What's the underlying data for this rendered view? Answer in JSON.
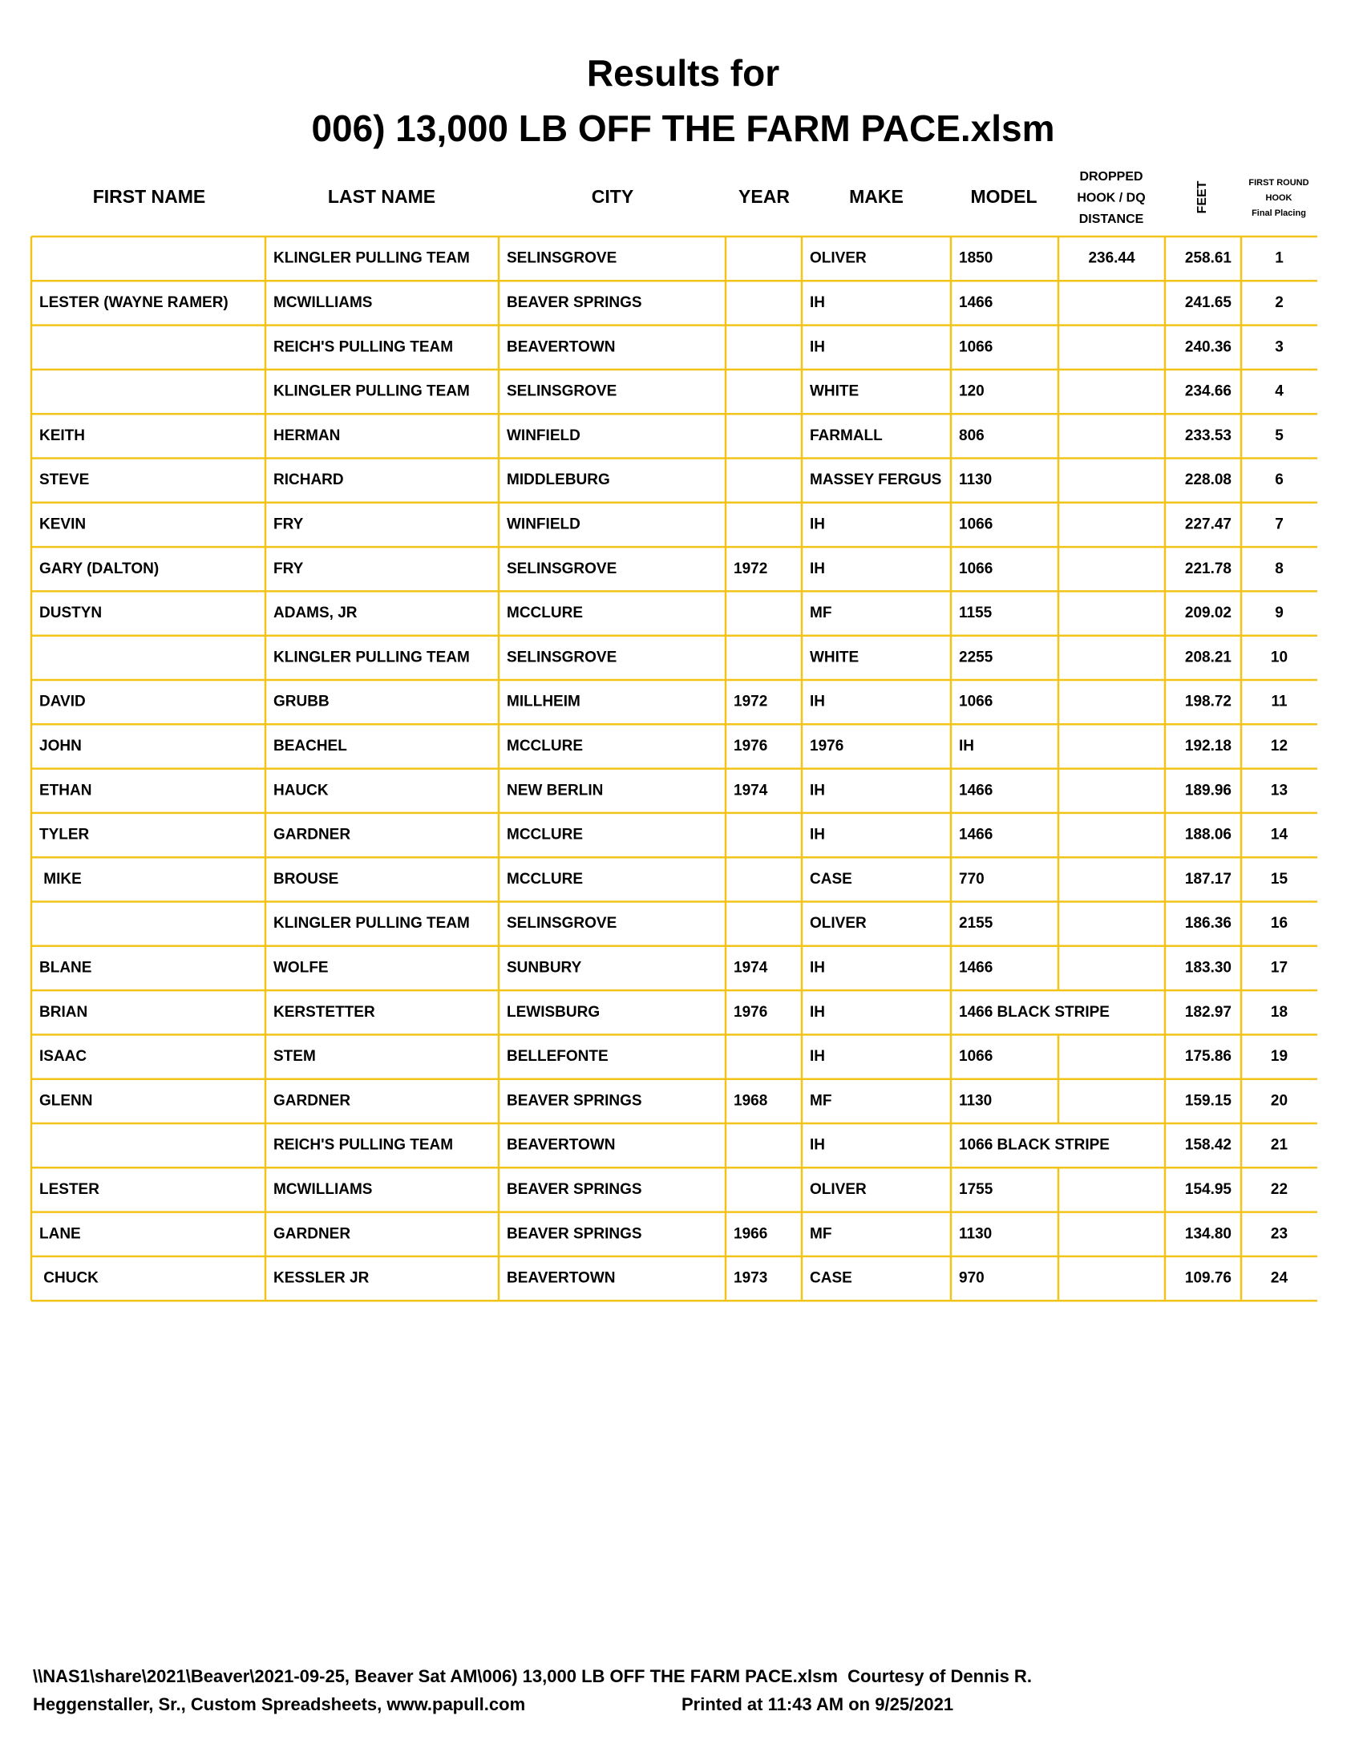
{
  "header": {
    "title": "Results for",
    "subtitle": "006) 13,000 LB OFF THE FARM PACE.xlsm"
  },
  "table": {
    "columns": [
      "FIRST NAME",
      "LAST NAME",
      "CITY",
      "YEAR",
      "MAKE",
      "MODEL",
      [
        "DROPPED",
        "HOOK / DQ",
        "DISTANCE"
      ],
      "FEET",
      [
        "FIRST ROUND",
        "HOOK",
        "Final Placing"
      ]
    ],
    "rows": [
      [
        null,
        "KLINGLER PULLING TEAM",
        "SELINSGROVE",
        null,
        "OLIVER",
        "1850",
        "236.44",
        "258.61",
        "1"
      ],
      [
        "LESTER (WAYNE RAMER)",
        "MCWILLIAMS",
        "BEAVER SPRINGS",
        null,
        "IH",
        "1466",
        null,
        "241.65",
        "2"
      ],
      [
        null,
        "REICH'S PULLING TEAM",
        "BEAVERTOWN",
        null,
        "IH",
        "1066",
        null,
        "240.36",
        "3"
      ],
      [
        null,
        "KLINGLER PULLING TEAM",
        "SELINSGROVE",
        null,
        "WHITE",
        "120",
        null,
        "234.66",
        "4"
      ],
      [
        "KEITH",
        "HERMAN",
        "WINFIELD",
        null,
        "FARMALL",
        "806",
        null,
        "233.53",
        "5"
      ],
      [
        "STEVE",
        "RICHARD",
        "MIDDLEBURG",
        null,
        "MASSEY FERGUS",
        "1130",
        null,
        "228.08",
        "6"
      ],
      [
        "KEVIN",
        "FRY",
        "WINFIELD",
        null,
        "IH",
        "1066",
        null,
        "227.47",
        "7"
      ],
      [
        "GARY (DALTON)",
        "FRY",
        "SELINSGROVE",
        "1972",
        "IH",
        "1066",
        null,
        "221.78",
        "8"
      ],
      [
        "DUSTYN",
        "ADAMS, JR",
        "MCCLURE",
        null,
        "MF",
        "1155",
        null,
        "209.02",
        "9"
      ],
      [
        null,
        "KLINGLER PULLING TEAM",
        "SELINSGROVE",
        null,
        "WHITE",
        "2255",
        null,
        "208.21",
        "10"
      ],
      [
        "DAVID",
        "GRUBB",
        "MILLHEIM",
        "1972",
        "IH",
        "1066",
        null,
        "198.72",
        "11"
      ],
      [
        "JOHN",
        "BEACHEL",
        "MCCLURE",
        "1976",
        "1976",
        "IH",
        null,
        "192.18",
        "12"
      ],
      [
        "ETHAN",
        "HAUCK",
        "NEW BERLIN",
        "1974",
        "IH",
        "1466",
        null,
        "189.96",
        "13"
      ],
      [
        "TYLER",
        "GARDNER",
        "MCCLURE",
        null,
        "IH",
        "1466",
        null,
        "188.06",
        "14"
      ],
      [
        " MIKE",
        "BROUSE",
        "MCCLURE",
        null,
        "CASE",
        "770",
        null,
        "187.17",
        "15"
      ],
      [
        null,
        "KLINGLER PULLING TEAM",
        "SELINSGROVE",
        null,
        "OLIVER",
        "2155",
        null,
        "186.36",
        "16"
      ],
      [
        "BLANE",
        "WOLFE",
        "SUNBURY",
        "1974",
        "IH",
        "1466",
        null,
        "183.30",
        "17"
      ],
      [
        "BRIAN",
        "KERSTETTER",
        "LEWISBURG",
        "1976",
        "IH",
        "1466 BLACK STRIPE",
        null,
        "182.97",
        "18"
      ],
      [
        "ISAAC",
        "STEM",
        "BELLEFONTE",
        null,
        "IH",
        "1066",
        null,
        "175.86",
        "19"
      ],
      [
        "GLENN",
        "GARDNER",
        "BEAVER SPRINGS",
        "1968",
        "MF",
        "1130",
        null,
        "159.15",
        "20"
      ],
      [
        null,
        "REICH'S PULLING TEAM",
        "BEAVERTOWN",
        null,
        "IH",
        "1066 BLACK STRIPE",
        null,
        "158.42",
        "21"
      ],
      [
        "LESTER",
        "MCWILLIAMS",
        "BEAVER SPRINGS",
        null,
        "OLIVER",
        "1755",
        null,
        "154.95",
        "22"
      ],
      [
        "LANE",
        "GARDNER",
        "BEAVER SPRINGS",
        "1966",
        "MF",
        "1130",
        null,
        "134.80",
        "23"
      ],
      [
        " CHUCK",
        "KESSLER JR",
        "BEAVERTOWN",
        "1973",
        "CASE",
        "970",
        null,
        "109.76",
        "24"
      ]
    ]
  },
  "footer": {
    "line1": "\\\\NAS1\\share\\2021\\Beaver\\2021-09-25, Beaver Sat AM\\006) 13,000 LB OFF THE FARM PACE.xlsm  Courtesy of Dennis R.",
    "line2": "Heggenstaller, Sr., Custom Spreadsheets, www.papull.com",
    "printed": "Printed at 11:43 AM on 9/25/2021"
  }
}
